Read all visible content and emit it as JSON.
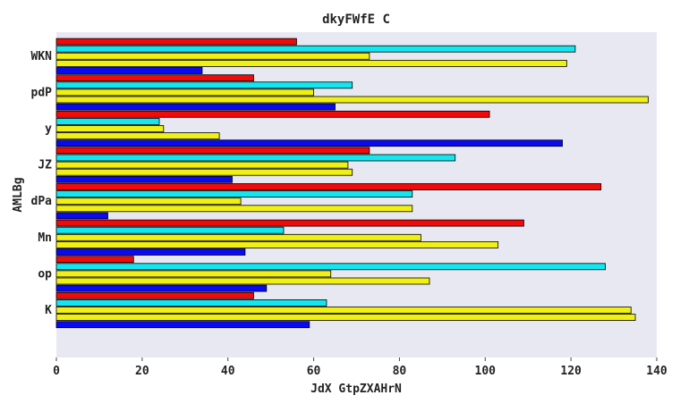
{
  "chart_data": {
    "type": "bar",
    "orientation": "horizontal",
    "title": "dkyFWfE C",
    "xlabel": "JdX GtpZXAHrN",
    "ylabel": "AMLBg",
    "xlim": [
      0,
      140
    ],
    "xticks": [
      "0",
      "20",
      "40",
      "60",
      "80",
      "100",
      "120",
      "140"
    ],
    "categories": [
      "K",
      "op",
      "Mn",
      "dPa",
      "JZ",
      "y",
      "pdP",
      "WKN"
    ],
    "series": [
      {
        "name": "blue",
        "color": "#0a0af0",
        "values": [
          59,
          49,
          44,
          12,
          41,
          118,
          65,
          34
        ]
      },
      {
        "name": "yellow-a",
        "color": "#f0f014",
        "values": [
          135,
          87,
          103,
          83,
          69,
          38,
          138,
          119
        ]
      },
      {
        "name": "yellow-b",
        "color": "#f0f014",
        "values": [
          134,
          64,
          85,
          43,
          68,
          25,
          60,
          73
        ]
      },
      {
        "name": "cyan",
        "color": "#14e6f0",
        "values": [
          63,
          128,
          53,
          83,
          93,
          24,
          69,
          121
        ]
      },
      {
        "name": "red",
        "color": "#f00a0a",
        "values": [
          46,
          18,
          109,
          127,
          73,
          101,
          46,
          56
        ]
      }
    ],
    "grid": false,
    "background": "#e8e8f2"
  }
}
